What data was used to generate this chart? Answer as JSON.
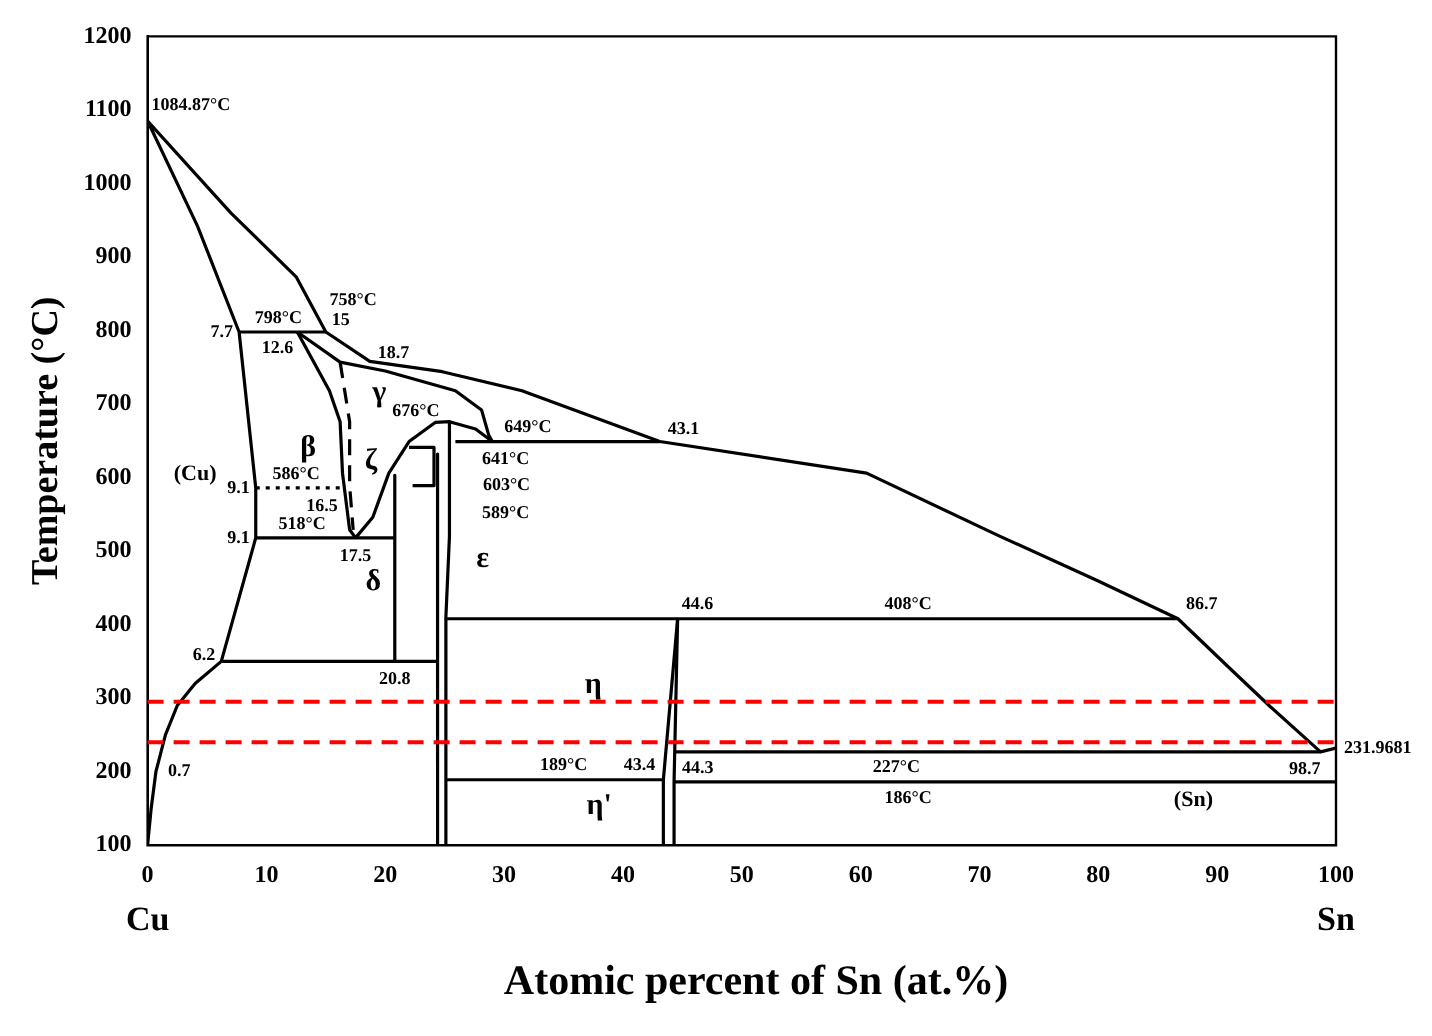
{
  "chart_data": {
    "type": "line",
    "xlabel": "Atomic percent of Sn (at.%)",
    "ylabel": "Temperature (°C)",
    "xlim": [
      0,
      100
    ],
    "xticks": [
      0,
      10,
      20,
      30,
      40,
      50,
      60,
      70,
      80,
      90,
      100
    ],
    "ylim": [
      100,
      1200
    ],
    "yticks": [
      100,
      200,
      300,
      400,
      500,
      600,
      700,
      800,
      900,
      1000,
      1100,
      1200
    ],
    "grid": false,
    "legend": false,
    "marker": "none",
    "line_style": "solid",
    "series": [
      {
        "color": "#000000",
        "x": [
          15,
          12.5,
          7.0,
          0,
          4.2,
          7.7,
          9.1,
          9.1,
          6.2,
          4,
          2.5,
          1.5,
          0.7,
          0.3,
          0
        ],
        "values": [
          798,
          873,
          960,
          1085,
          942,
          798,
          586,
          518,
          350,
          320,
          290,
          250,
          200,
          150,
          100
        ]
      },
      {
        "color": "#000000",
        "x": [
          15,
          18.7,
          24.8,
          31.5,
          43.1,
          60.5,
          71.6,
          79.9,
          86.7,
          91.1,
          94.5,
          98.7,
          100
        ],
        "values": [
          798,
          758,
          744,
          718,
          649,
          606,
          521,
          460,
          408,
          340,
          288,
          227,
          232
        ]
      },
      {
        "color": "#000000",
        "x": [
          7.7,
          15
        ],
        "values": [
          798,
          798
        ]
      },
      {
        "color": "#000000",
        "x": [
          12.6,
          16.2,
          20,
          25.9,
          28.1,
          28.7,
          29
        ],
        "values": [
          798,
          757,
          745,
          718,
          692,
          658,
          649
        ]
      },
      {
        "color": "#000000",
        "x": [
          12.6,
          15.3,
          16.2,
          16.4,
          17.0,
          17.5
        ],
        "values": [
          798,
          718,
          676,
          606,
          529,
          518
        ]
      },
      {
        "color": "#000000",
        "line_style": "dashed",
        "x": [
          16.2,
          17.0,
          17.0,
          17.3
        ],
        "values": [
          757,
          676,
          589,
          529
        ]
      },
      {
        "color": "#000000",
        "x": [
          17.5,
          18.95,
          20.3,
          22,
          24.2,
          25.4,
          27.6,
          29
        ],
        "values": [
          518,
          546,
          606,
          649,
          675,
          676,
          666,
          649
        ]
      },
      {
        "color": "#000000",
        "x": [
          25.9,
          43.1
        ],
        "values": [
          649,
          649
        ]
      },
      {
        "color": "#000000",
        "x": [
          24.4,
          24.4
        ],
        "values": [
          632,
          100
        ]
      },
      {
        "color": "#000000",
        "x": [
          25.4,
          25.4,
          25.1,
          25.1
        ],
        "values": [
          676,
          520,
          410,
          100
        ]
      },
      {
        "color": "#000000",
        "x": [
          22.0,
          24.1,
          24.1,
          22.3
        ],
        "values": [
          641,
          641,
          589,
          589
        ]
      },
      {
        "color": "#000000",
        "x": [
          20.8,
          20.8
        ],
        "values": [
          603,
          350
        ]
      },
      {
        "color": "#000000",
        "x": [
          9.1,
          20.8
        ],
        "values": [
          518,
          518
        ]
      },
      {
        "color": "#000000",
        "x": [
          6.2,
          24.4
        ],
        "values": [
          350,
          350
        ]
      },
      {
        "color": "#000000",
        "line_style": "dotted",
        "x": [
          9.1,
          16.5
        ],
        "values": [
          586,
          586
        ]
      },
      {
        "color": "#000000",
        "x": [
          25.1,
          86.7
        ],
        "values": [
          408,
          408
        ]
      },
      {
        "color": "#000000",
        "x": [
          44.6,
          43.4,
          43.4
        ],
        "values": [
          408,
          189,
          100
        ]
      },
      {
        "color": "#000000",
        "x": [
          44.6,
          44.3,
          44.3
        ],
        "values": [
          408,
          186,
          100
        ]
      },
      {
        "color": "#000000",
        "x": [
          44.3,
          98.7
        ],
        "values": [
          227,
          227
        ]
      },
      {
        "color": "#000000",
        "x": [
          44.3,
          100
        ],
        "values": [
          186,
          186
        ]
      },
      {
        "color": "#000000",
        "x": [
          25.1,
          43.4
        ],
        "values": [
          189,
          189
        ]
      }
    ],
    "ref_lines": [
      {
        "axis": "y",
        "value": 295,
        "color": "#ff0000",
        "line_style": "dashed"
      },
      {
        "axis": "y",
        "value": 240,
        "color": "#ff0000",
        "line_style": "dashed"
      }
    ],
    "annotations": [
      "Cu",
      "Sn",
      "β",
      "γ",
      "(Cu)",
      "ζ",
      "δ",
      "ε",
      "η",
      "η'",
      "(Sn)",
      "603°C",
      {
        "text": "1084.87°C",
        "x": 0,
        "y": 1085
      },
      {
        "text": "798°C",
        "x": 11,
        "y": 798
      },
      {
        "text": "7.7",
        "x": 7.7,
        "y": 798
      },
      {
        "text": "12.6",
        "x": 12.6,
        "y": 798
      },
      {
        "text": "15",
        "x": 15,
        "y": 798
      },
      {
        "text": "758°C",
        "x": 17.3,
        "y": 765
      },
      {
        "text": "18.7",
        "x": 18.7,
        "y": 758
      },
      {
        "text": "676°C",
        "x": 25.4,
        "y": 676
      },
      {
        "text": "649°C",
        "x": 32,
        "y": 649
      },
      {
        "text": "43.1",
        "x": 43.1,
        "y": 649
      },
      {
        "text": "641°C",
        "x": 24.1,
        "y": 641
      },
      {
        "text": "589°C",
        "x": 24.1,
        "y": 589
      },
      {
        "text": "9.1",
        "x": 9.1,
        "y": 586
      },
      {
        "text": "586°C",
        "x": 12.5,
        "y": 586
      },
      {
        "text": "16.5",
        "x": 16.5,
        "y": 586
      },
      {
        "text": "9.1",
        "x": 9.1,
        "y": 518
      },
      {
        "text": "518°C",
        "x": 13,
        "y": 518
      },
      {
        "text": "17.5",
        "x": 17.5,
        "y": 518
      },
      {
        "text": "6.2",
        "x": 6.2,
        "y": 350
      },
      {
        "text": "20.8",
        "x": 20.8,
        "y": 350
      },
      {
        "text": "44.6",
        "x": 44.6,
        "y": 408
      },
      {
        "text": "408°C",
        "x": 64,
        "y": 408
      },
      {
        "text": "86.7",
        "x": 86.7,
        "y": 408
      },
      {
        "text": "0.7",
        "x": 0.7,
        "y": 200
      },
      {
        "text": "227°C",
        "x": 63,
        "y": 227
      },
      {
        "text": "98.7",
        "x": 98.7,
        "y": 227
      },
      {
        "text": "231.9681",
        "x": 100,
        "y": 232
      },
      {
        "text": "189°C",
        "x": 35,
        "y": 189
      },
      {
        "text": "43.4",
        "x": 43.4,
        "y": 189
      },
      {
        "text": "44.3",
        "x": 44.3,
        "y": 186
      },
      {
        "text": "186°C",
        "x": 64,
        "y": 186
      }
    ]
  }
}
